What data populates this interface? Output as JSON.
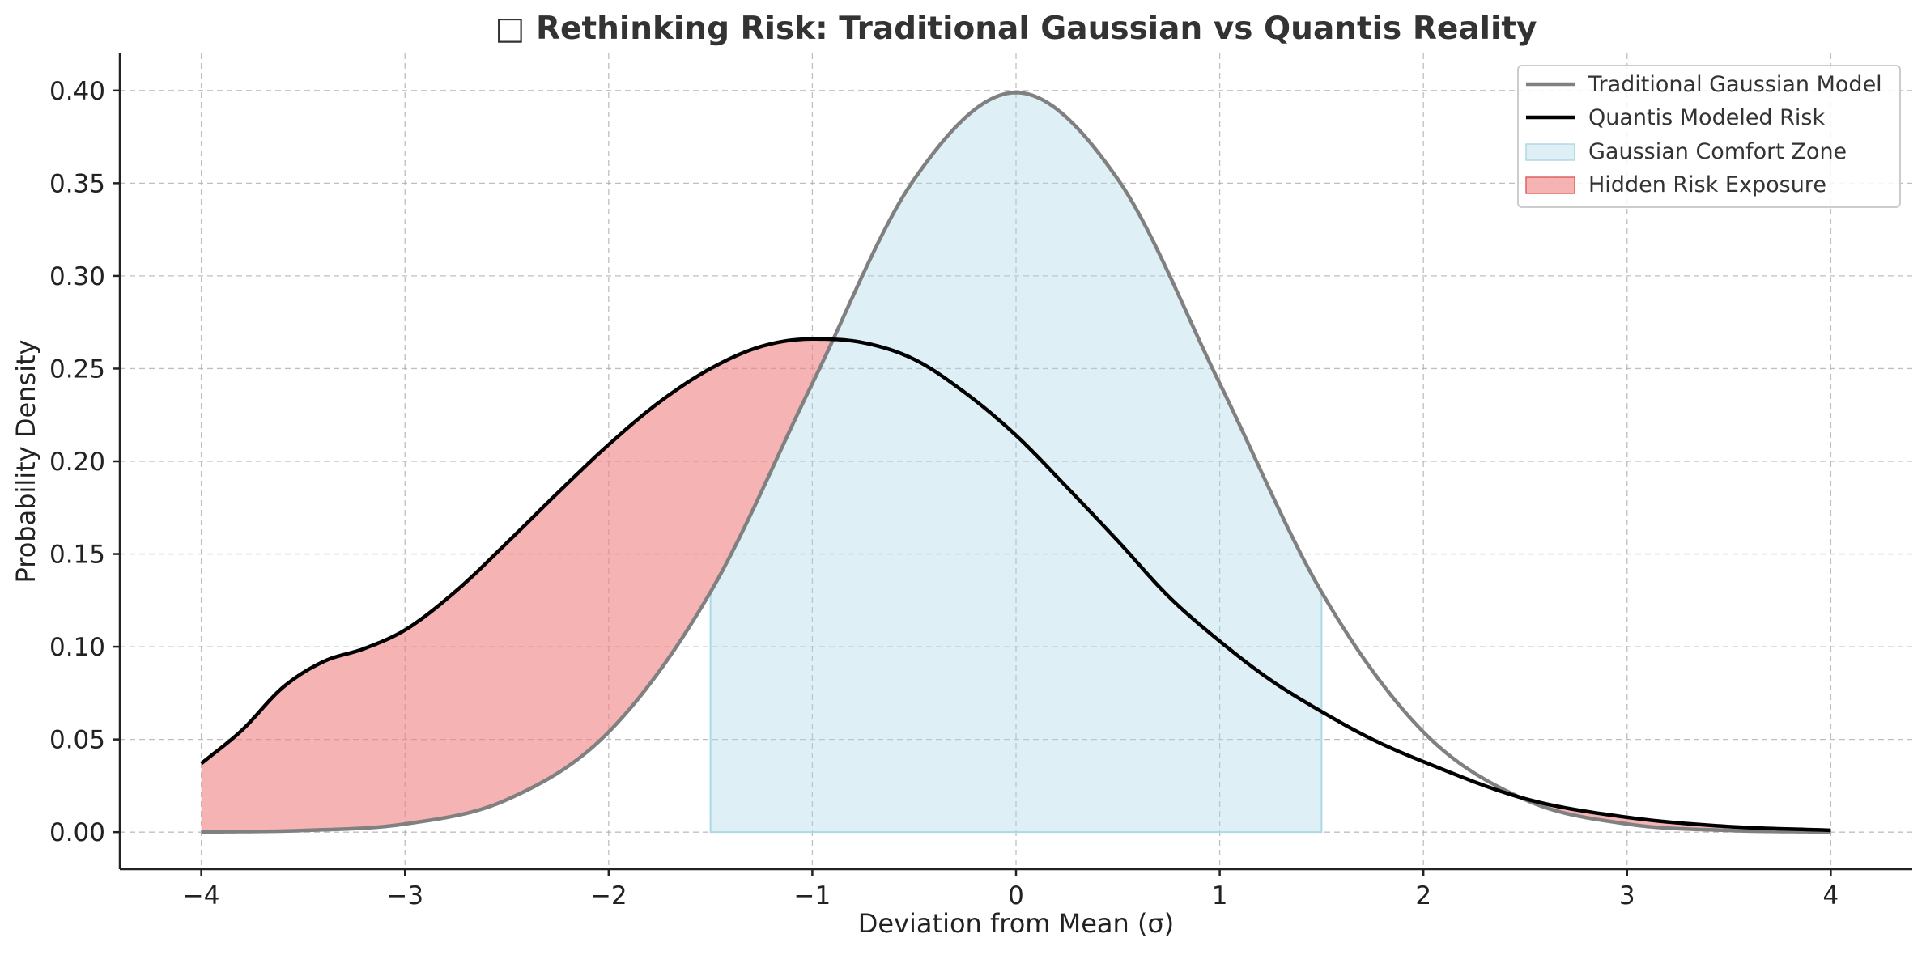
{
  "chart_data": {
    "type": "line",
    "title": "□ Rethinking Risk: Traditional Gaussian vs Quantis Reality",
    "xlabel": "Deviation from Mean (σ)",
    "ylabel": "Probability Density",
    "xlim": [
      -4.4,
      4.4
    ],
    "ylim": [
      -0.02,
      0.42
    ],
    "x_ticks": [
      -4,
      -3,
      -2,
      -1,
      0,
      1,
      2,
      3,
      4
    ],
    "x_tick_labels": [
      "−4",
      "−3",
      "−2",
      "−1",
      "0",
      "1",
      "2",
      "3",
      "4"
    ],
    "y_ticks": [
      0.0,
      0.05,
      0.1,
      0.15,
      0.2,
      0.25,
      0.3,
      0.35,
      0.4
    ],
    "y_tick_labels": [
      "0.00",
      "0.05",
      "0.10",
      "0.15",
      "0.20",
      "0.25",
      "0.30",
      "0.35",
      "0.40"
    ],
    "grid": true,
    "legend_position": "top-right",
    "series": [
      {
        "name": "Traditional Gaussian Model",
        "color": "#808080",
        "x": [
          -4,
          -3.5,
          -3,
          -2.5,
          -2,
          -1.5,
          -1,
          -0.5,
          0,
          0.5,
          1,
          1.5,
          2,
          2.5,
          3,
          3.5,
          4
        ],
        "y": [
          0.0001,
          0.0009,
          0.0044,
          0.0175,
          0.054,
          0.1295,
          0.242,
          0.3521,
          0.3989,
          0.3521,
          0.242,
          0.1295,
          0.054,
          0.0175,
          0.0044,
          0.0009,
          0.0001
        ]
      },
      {
        "name": "Quantis Modeled Risk",
        "color": "#000000",
        "x": [
          -4,
          -3.8,
          -3.6,
          -3.4,
          -3.2,
          -3,
          -2.75,
          -2.5,
          -2.25,
          -2,
          -1.75,
          -1.5,
          -1.25,
          -1,
          -0.75,
          -0.5,
          -0.25,
          0,
          0.25,
          0.5,
          0.75,
          1,
          1.25,
          1.5,
          1.75,
          2,
          2.5,
          3,
          3.5,
          4
        ],
        "y": [
          0.037,
          0.055,
          0.078,
          0.092,
          0.099,
          0.109,
          0.13,
          0.156,
          0.183,
          0.209,
          0.232,
          0.25,
          0.262,
          0.266,
          0.264,
          0.255,
          0.237,
          0.214,
          0.186,
          0.157,
          0.127,
          0.103,
          0.082,
          0.065,
          0.05,
          0.038,
          0.018,
          0.008,
          0.003,
          0.001
        ]
      }
    ],
    "fills": [
      {
        "name": "Gaussian Comfort Zone",
        "color": "#add8e6",
        "opacity": 0.4,
        "x_range": [
          -1.5,
          1.5
        ],
        "between": "Traditional Gaussian Model and 0"
      },
      {
        "name": "Hidden Risk Exposure",
        "color": "#f08080",
        "opacity": 0.6,
        "where": "Quantis Modeled Risk > Traditional Gaussian Model",
        "between": "Traditional Gaussian Model and Quantis Modeled Risk"
      }
    ]
  }
}
